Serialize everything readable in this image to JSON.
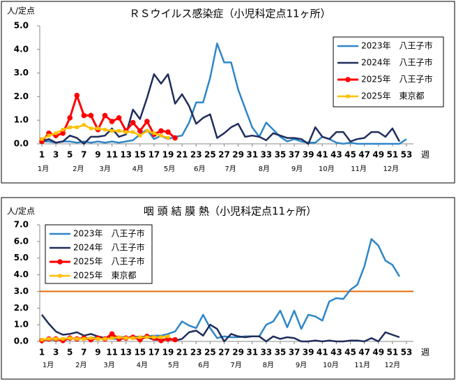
{
  "chart_data": [
    {
      "type": "line",
      "title": "ＲＳウイルス感染症（小児科定点11ヶ所）",
      "ylabel": "人/定点",
      "xlabel": "週",
      "x": [
        1,
        2,
        3,
        4,
        5,
        6,
        7,
        8,
        9,
        10,
        11,
        12,
        13,
        14,
        15,
        16,
        17,
        18,
        19,
        20,
        21,
        22,
        23,
        24,
        25,
        26,
        27,
        28,
        29,
        30,
        31,
        32,
        33,
        34,
        35,
        36,
        37,
        38,
        39,
        40,
        41,
        42,
        43,
        44,
        45,
        46,
        47,
        48,
        49,
        50,
        51,
        52,
        53
      ],
      "xlim": [
        0.7,
        54
      ],
      "xticks": [
        1,
        3,
        5,
        7,
        9,
        11,
        13,
        15,
        17,
        19,
        21,
        23,
        25,
        27,
        29,
        31,
        33,
        35,
        37,
        39,
        41,
        43,
        45,
        47,
        49,
        51,
        53
      ],
      "month_labels": [
        {
          "value": 1.2,
          "label": "1月"
        },
        {
          "value": 6.2,
          "label": "2月"
        },
        {
          "value": 10,
          "label": "3月"
        },
        {
          "value": 14.7,
          "label": "4月"
        },
        {
          "value": 19.2,
          "label": "5月"
        },
        {
          "value": 23.5,
          "label": "6月"
        },
        {
          "value": 27.9,
          "label": "7月"
        },
        {
          "value": 32.7,
          "label": "8月"
        },
        {
          "value": 37.4,
          "label": "9月"
        },
        {
          "value": 41.6,
          "label": "10月"
        },
        {
          "value": 46.2,
          "label": "11月"
        },
        {
          "value": 50.8,
          "label": "12月"
        }
      ],
      "ylim": [
        0,
        5
      ],
      "yticks": [
        {
          "value": 0,
          "label": "0.0"
        },
        {
          "value": 1,
          "label": "1.0"
        },
        {
          "value": 2,
          "label": "2.0"
        },
        {
          "value": 3,
          "label": "3.0"
        },
        {
          "value": 4,
          "label": "4.0"
        },
        {
          "value": 5,
          "label": "5.0"
        }
      ],
      "legend": "top-right",
      "series": [
        {
          "name": "2023年　八王子市",
          "color": "#2e86c8",
          "values": [
            0.1,
            0.1,
            0.05,
            0.1,
            0.1,
            0.05,
            0.1,
            0.05,
            0.1,
            0.05,
            0.1,
            0.05,
            0.1,
            0.15,
            0.4,
            0.6,
            0.2,
            0.35,
            0.2,
            0.3,
            0.35,
            0.9,
            1.75,
            1.75,
            2.8,
            4.25,
            3.45,
            3.45,
            2.3,
            1.5,
            0.7,
            0.3,
            0.9,
            0.6,
            0.3,
            0.1,
            0.2,
            0.1,
            0.05,
            0.05,
            0.3,
            0.2,
            0.05,
            0,
            0.05,
            0,
            0,
            0,
            0,
            0,
            0,
            0,
            0.2
          ]
        },
        {
          "name": "2024年　八王子市",
          "color": "#1f2d5c",
          "values": [
            0.1,
            0.2,
            0.05,
            0.1,
            0.35,
            0.25,
            0,
            0.3,
            0.3,
            0.35,
            0.65,
            0.3,
            0.4,
            1.45,
            1.05,
            1.95,
            2.95,
            2.55,
            2.95,
            1.7,
            2.1,
            1.6,
            0.85,
            1.1,
            1.25,
            0.25,
            0.45,
            0.7,
            0.85,
            0.3,
            0.35,
            0.3,
            0.15,
            0.45,
            0.35,
            0.25,
            0.25,
            0.2,
            0,
            0.7,
            0.3,
            0.2,
            0.5,
            0.5,
            0.1,
            0.2,
            0.25,
            0.5,
            0.5,
            0.3,
            0.65,
            0.1,
            null
          ]
        },
        {
          "name": "2025年　八王子市",
          "color": "#ff0000",
          "marker": "circle",
          "values": [
            0.1,
            0.45,
            0.35,
            0.45,
            1.1,
            2.05,
            1.2,
            1.2,
            0.6,
            1.2,
            0.95,
            1.1,
            0.55,
            0.9,
            0.55,
            0.95,
            0.4,
            0.55,
            0.5,
            0.25,
            null,
            null,
            null,
            null,
            null,
            null,
            null,
            null,
            null,
            null,
            null,
            null,
            null,
            null,
            null,
            null,
            null,
            null,
            null,
            null,
            null,
            null,
            null,
            null,
            null,
            null,
            null,
            null,
            null,
            null,
            null,
            null,
            null
          ]
        },
        {
          "name": "2025年　東京都",
          "color": "#ffc000",
          "marker": "square",
          "values": [
            0.2,
            0.35,
            0.45,
            0.6,
            0.7,
            0.7,
            0.8,
            0.65,
            0.65,
            0.6,
            0.55,
            0.55,
            0.5,
            0.5,
            0.35,
            0.55,
            0.45,
            0.35,
            0.25,
            null,
            null,
            null,
            null,
            null,
            null,
            null,
            null,
            null,
            null,
            null,
            null,
            null,
            null,
            null,
            null,
            null,
            null,
            null,
            null,
            null,
            null,
            null,
            null,
            null,
            null,
            null,
            null,
            null,
            null,
            null,
            null,
            null,
            null
          ]
        }
      ]
    },
    {
      "type": "line",
      "title": "咽 頭 結 膜 熱（小児科定点11ヶ所）",
      "ylabel": "人/定点",
      "xlabel": "週",
      "x": [
        1,
        2,
        3,
        4,
        5,
        6,
        7,
        8,
        9,
        10,
        11,
        12,
        13,
        14,
        15,
        16,
        17,
        18,
        19,
        20,
        21,
        22,
        23,
        24,
        25,
        26,
        27,
        28,
        29,
        30,
        31,
        32,
        33,
        34,
        35,
        36,
        37,
        38,
        39,
        40,
        41,
        42,
        43,
        44,
        45,
        46,
        47,
        48,
        49,
        50,
        51,
        52,
        53
      ],
      "xlim": [
        0.7,
        54
      ],
      "xticks": [
        1,
        3,
        5,
        7,
        9,
        11,
        13,
        15,
        17,
        19,
        21,
        23,
        25,
        27,
        29,
        31,
        33,
        35,
        37,
        39,
        41,
        43,
        45,
        47,
        49,
        51,
        53
      ],
      "month_labels": [
        {
          "value": 1.9,
          "label": "1月"
        },
        {
          "value": 6.6,
          "label": "2月"
        },
        {
          "value": 10.6,
          "label": "3月"
        },
        {
          "value": 15.3,
          "label": "4月"
        },
        {
          "value": 19.8,
          "label": "5月"
        },
        {
          "value": 24.1,
          "label": "6月"
        },
        {
          "value": 28.7,
          "label": "7月"
        },
        {
          "value": 33.3,
          "label": "8月"
        },
        {
          "value": 38,
          "label": "9月"
        },
        {
          "value": 42.2,
          "label": "10月"
        },
        {
          "value": 46.7,
          "label": "11月"
        },
        {
          "value": 51,
          "label": "12月"
        }
      ],
      "ylim": [
        0,
        7
      ],
      "yticks": [
        {
          "value": 0,
          "label": "0.0"
        },
        {
          "value": 1,
          "label": "1.0"
        },
        {
          "value": 2,
          "label": "2.0"
        },
        {
          "value": 3,
          "label": "3.0"
        },
        {
          "value": 4,
          "label": "4.0"
        },
        {
          "value": 5,
          "label": "5.0"
        },
        {
          "value": 6,
          "label": "6.0"
        },
        {
          "value": 7,
          "label": "7.0"
        }
      ],
      "legend": "top-left",
      "reference_line": {
        "value": 3,
        "color": "#e46c0a"
      },
      "series": [
        {
          "name": "2023年　八王子市",
          "color": "#2e86c8",
          "values": [
            0.1,
            0.1,
            0.1,
            0.15,
            0.2,
            0.15,
            0.2,
            0.2,
            0.25,
            0.2,
            0.15,
            0.15,
            0.2,
            0.3,
            0.25,
            0.3,
            0.35,
            0.35,
            0.45,
            0.6,
            1.2,
            0.95,
            0.8,
            1.6,
            0.8,
            0.2,
            0.3,
            0.25,
            0.25,
            0.3,
            0.3,
            0.3,
            1.0,
            1.2,
            1.85,
            0.85,
            1.85,
            0.75,
            1.6,
            1.5,
            1.25,
            2.4,
            2.6,
            2.55,
            3.1,
            3.4,
            4.5,
            6.15,
            5.75,
            4.85,
            4.6,
            3.9,
            null
          ]
        },
        {
          "name": "2024年　八王子市",
          "color": "#1f2d5c",
          "values": [
            1.6,
            1.05,
            0.6,
            0.4,
            0.45,
            0.55,
            0.35,
            0.45,
            0.3,
            0.2,
            0.3,
            0.25,
            0.25,
            0.2,
            0.3,
            0.25,
            0.1,
            0.1,
            0.15,
            0.05,
            0.15,
            0.55,
            0.65,
            0.35,
            1.0,
            0.75,
            0,
            0.45,
            0.3,
            0.25,
            0.3,
            0.3,
            0,
            0.3,
            0.15,
            0.25,
            0.2,
            0,
            0,
            0.05,
            0,
            0.05,
            0,
            0,
            0.05,
            0.05,
            0,
            0.2,
            0,
            0.55,
            0.4,
            0.25,
            null
          ]
        },
        {
          "name": "2025年　八王子市",
          "color": "#ff0000",
          "marker": "circle",
          "values": [
            0.05,
            0.15,
            0.15,
            0.05,
            0.2,
            0.15,
            0.2,
            0.1,
            0.2,
            0.15,
            0.45,
            0.15,
            0.2,
            0.25,
            0.1,
            0.3,
            0.2,
            0.05,
            0.15,
            0.1,
            null,
            null,
            null,
            null,
            null,
            null,
            null,
            null,
            null,
            null,
            null,
            null,
            null,
            null,
            null,
            null,
            null,
            null,
            null,
            null,
            null,
            null,
            null,
            null,
            null,
            null,
            null,
            null,
            null,
            null,
            null,
            null,
            null
          ]
        },
        {
          "name": "2025年　東京都",
          "color": "#ffc000",
          "marker": "square",
          "values": [
            0.1,
            0.15,
            0.15,
            0.15,
            0.2,
            0.15,
            0.15,
            0.2,
            0.15,
            0.15,
            0.2,
            0.25,
            0.2,
            0.2,
            0.25,
            0.25,
            0.25,
            0.25,
            0.3,
            null,
            null,
            null,
            null,
            null,
            null,
            null,
            null,
            null,
            null,
            null,
            null,
            null,
            null,
            null,
            null,
            null,
            null,
            null,
            null,
            null,
            null,
            null,
            null,
            null,
            null,
            null,
            null,
            null,
            null,
            null,
            null,
            null,
            null
          ]
        }
      ]
    }
  ]
}
